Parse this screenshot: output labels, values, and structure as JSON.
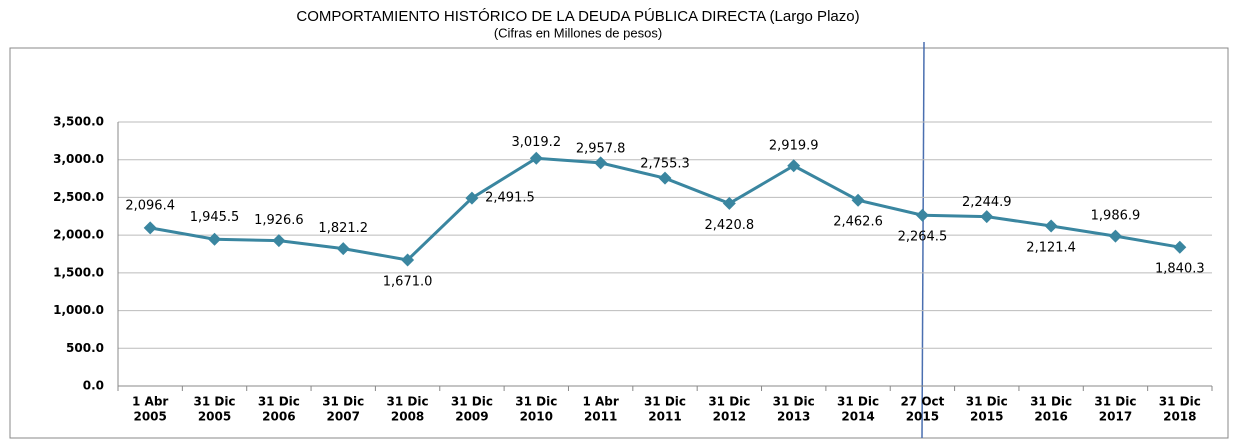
{
  "chart_data": {
    "type": "line",
    "title": "COMPORTAMIENTO  HISTÓRICO  DE LA DEUDA PÚBLICA DIRECTA (Largo Plazo)",
    "subtitle": "(Cifras en Millones de pesos)",
    "categories": [
      [
        "1 Abr",
        "2005"
      ],
      [
        "31 Dic",
        "2005"
      ],
      [
        "31 Dic",
        "2006"
      ],
      [
        "31 Dic",
        "2007"
      ],
      [
        "31 Dic",
        "2008"
      ],
      [
        "31 Dic",
        "2009"
      ],
      [
        "31 Dic",
        "2010"
      ],
      [
        "1 Abr",
        "2011"
      ],
      [
        "31 Dic",
        "2011"
      ],
      [
        "31 Dic",
        "2012"
      ],
      [
        "31 Dic",
        "2013"
      ],
      [
        "31 Dic",
        "2014"
      ],
      [
        "27 Oct",
        "2015"
      ],
      [
        "31 Dic",
        "2015"
      ],
      [
        "31 Dic",
        "2016"
      ],
      [
        "31 Dic",
        "2017"
      ],
      [
        "31 Dic",
        "2018"
      ]
    ],
    "values": [
      2096.4,
      1945.5,
      1926.6,
      1821.2,
      1671.0,
      2491.5,
      3019.2,
      2957.8,
      2755.3,
      2420.8,
      2919.9,
      2462.6,
      2264.5,
      2244.9,
      2121.4,
      1986.9,
      1840.3
    ],
    "value_labels": [
      "2,096.4",
      "1,945.5",
      "1,926.6",
      "1,821.2",
      "1,671.0",
      "2,491.5",
      "3,019.2",
      "2,957.8",
      "2,755.3",
      "2,420.8",
      "2,919.9",
      "2,462.6",
      "2,264.5",
      "2,244.9",
      "2,121.4",
      "1,986.9",
      "1,840.3"
    ],
    "color": "#3a86a0",
    "ylim": [
      0,
      3500
    ],
    "yticks": [
      {
        "value": 0,
        "label": "0.0"
      },
      {
        "value": 500,
        "label": "500.0"
      },
      {
        "value": 1000,
        "label": "1,000.0"
      },
      {
        "value": 1500,
        "label": "1,500.0"
      },
      {
        "value": 2000,
        "label": "2,000.0"
      },
      {
        "value": 2500,
        "label": "2,500.0"
      },
      {
        "value": 3000,
        "label": "3,000.0"
      },
      {
        "value": 3500,
        "label": "3,500.0"
      }
    ],
    "grid": true
  }
}
